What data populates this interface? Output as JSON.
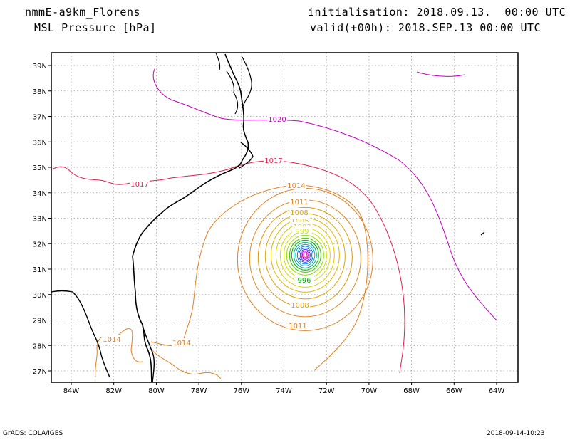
{
  "header": {
    "model": "nmmE-a9km_Florens",
    "variable": "MSL Pressure [hPa]",
    "init": "initialisation: 2018.09.13.  00:00 UTC",
    "valid": "valid(+00h): 2018.SEP.13 00:00 UTC"
  },
  "map": {
    "lon_labels": [
      "84W",
      "82W",
      "80W",
      "78W",
      "76W",
      "74W",
      "72W",
      "70W",
      "68W",
      "66W",
      "64W"
    ],
    "lat_labels": [
      "39N",
      "38N",
      "37N",
      "36N",
      "35N",
      "34N",
      "33N",
      "32N",
      "31N",
      "30N",
      "29N",
      "28N",
      "27N"
    ],
    "gridlines": true,
    "contour_labels": [
      {
        "text": "1020",
        "color": "#c000c0"
      },
      {
        "text": "1017",
        "color": "#e0204a"
      },
      {
        "text": "1017",
        "color": "#e0204a"
      },
      {
        "text": "1014",
        "color": "#e08020"
      },
      {
        "text": "1014",
        "color": "#e08020"
      },
      {
        "text": "1014",
        "color": "#e08020"
      },
      {
        "text": "1011",
        "color": "#e08020"
      },
      {
        "text": "1011",
        "color": "#e08020"
      },
      {
        "text": "1008",
        "color": "#e0a000"
      },
      {
        "text": "1008",
        "color": "#e0a000"
      },
      {
        "text": "1005",
        "color": "#e0c000"
      },
      {
        "text": "1002",
        "color": "#d8d800"
      },
      {
        "text": "999",
        "color": "#c8e000"
      },
      {
        "text": "996",
        "color": "#00b000"
      }
    ],
    "cyclone_center": {
      "lon": -73.0,
      "lat": 31.55
    }
  },
  "footer": {
    "left": "GrADS: COLA/IGES",
    "right": "2018-09-14-10:23"
  }
}
